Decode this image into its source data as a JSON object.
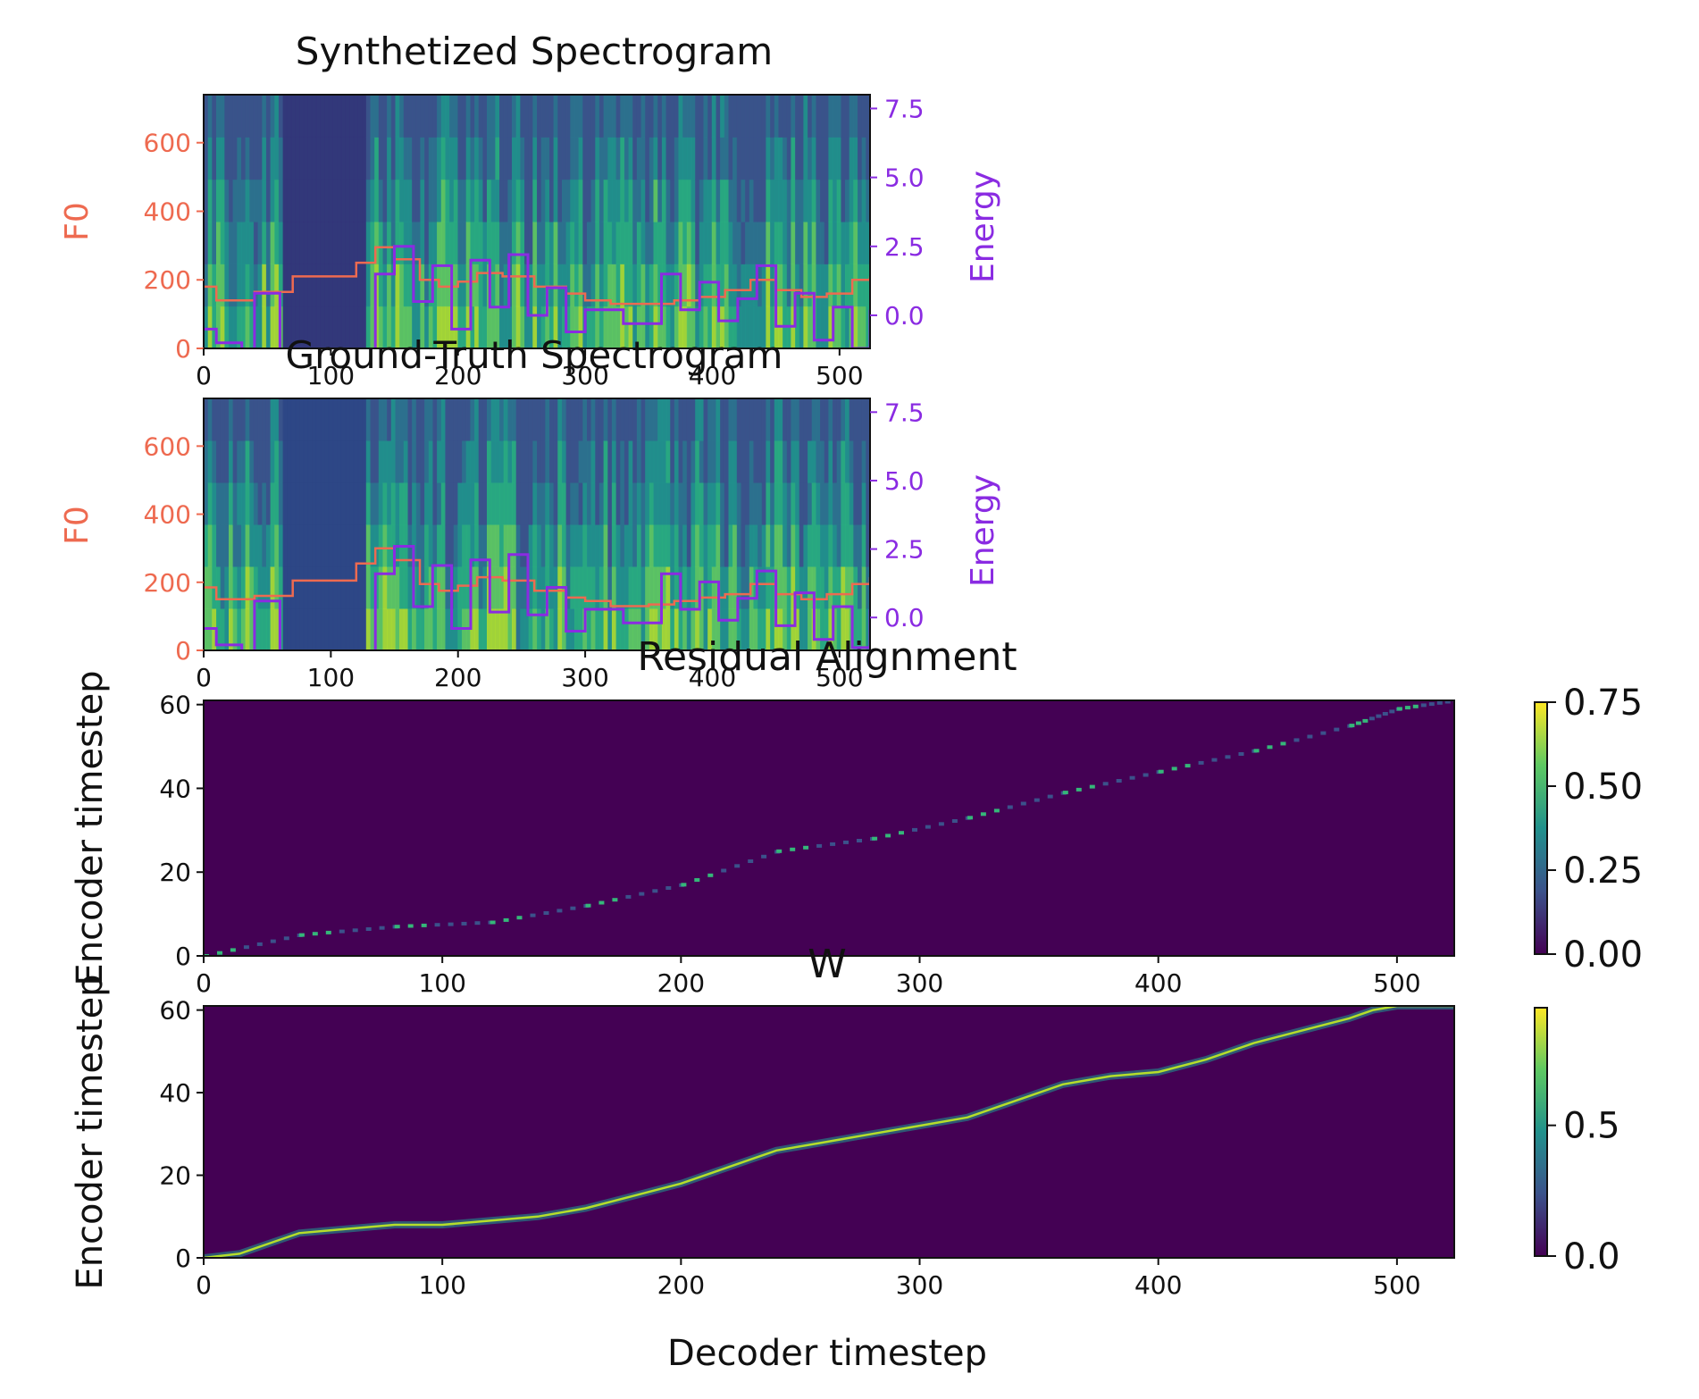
{
  "chart_data": [
    {
      "type": "heatmap",
      "title": "Synthetized Spectrogram",
      "x_range": [
        0,
        524
      ],
      "xticks": [
        "0",
        "100",
        "200",
        "300",
        "400",
        "500"
      ],
      "left_axis": {
        "label": "F0",
        "range": [
          0,
          740
        ],
        "ticks": [
          "0",
          "200",
          "400",
          "600"
        ],
        "color": "#ee6a50"
      },
      "right_axis": {
        "label": "Energy",
        "range": [
          -1.2,
          8.0
        ],
        "ticks": [
          "0.0",
          "2.5",
          "5.0",
          "7.5"
        ],
        "color": "#8a2be2"
      },
      "f0": {
        "x": [
          0,
          10,
          40,
          70,
          120,
          135,
          150,
          170,
          185,
          200,
          215,
          235,
          260,
          285,
          300,
          320,
          350,
          370,
          390,
          410,
          430,
          450,
          470,
          490,
          510,
          524
        ],
        "y": [
          180,
          140,
          165,
          210,
          250,
          295,
          260,
          200,
          180,
          195,
          220,
          210,
          180,
          160,
          140,
          130,
          130,
          140,
          150,
          170,
          200,
          170,
          150,
          160,
          200,
          210
        ]
      },
      "energy": {
        "x": [
          0,
          10,
          30,
          40,
          60,
          120,
          135,
          150,
          165,
          180,
          195,
          210,
          225,
          240,
          255,
          270,
          285,
          300,
          330,
          360,
          375,
          390,
          405,
          420,
          435,
          450,
          465,
          480,
          495,
          510,
          524
        ],
        "y": [
          -0.5,
          -1.0,
          -1.5,
          0.8,
          -1.5,
          -1.5,
          1.5,
          2.5,
          0.5,
          1.8,
          -0.5,
          2.0,
          0.3,
          2.2,
          0.0,
          1.0,
          -0.6,
          0.2,
          -0.3,
          1.5,
          0.2,
          1.2,
          -0.2,
          0.6,
          1.8,
          -0.4,
          0.8,
          -0.9,
          0.3,
          -1.2,
          0.2
        ]
      }
    },
    {
      "type": "heatmap",
      "title": "Ground-Truth Spectrogram",
      "x_range": [
        0,
        524
      ],
      "xticks": [
        "0",
        "100",
        "200",
        "300",
        "400",
        "500"
      ],
      "left_axis": {
        "label": "F0",
        "range": [
          0,
          740
        ],
        "ticks": [
          "0",
          "200",
          "400",
          "600"
        ],
        "color": "#ee6a50"
      },
      "right_axis": {
        "label": "Energy",
        "range": [
          -1.2,
          8.0
        ],
        "ticks": [
          "0.0",
          "2.5",
          "5.0",
          "7.5"
        ],
        "color": "#8a2be2"
      },
      "f0": {
        "x": [
          0,
          10,
          40,
          70,
          120,
          135,
          150,
          170,
          185,
          200,
          215,
          235,
          260,
          285,
          300,
          320,
          350,
          370,
          390,
          410,
          430,
          450,
          470,
          490,
          510,
          524
        ],
        "y": [
          185,
          150,
          160,
          205,
          255,
          300,
          265,
          195,
          175,
          190,
          215,
          205,
          175,
          155,
          145,
          130,
          135,
          145,
          155,
          165,
          195,
          165,
          150,
          165,
          195,
          215
        ]
      },
      "energy": {
        "x": [
          0,
          10,
          30,
          40,
          60,
          120,
          135,
          150,
          165,
          180,
          195,
          210,
          225,
          240,
          255,
          270,
          285,
          300,
          330,
          360,
          375,
          390,
          405,
          420,
          435,
          450,
          465,
          480,
          495,
          510,
          524
        ],
        "y": [
          -0.4,
          -1.0,
          -1.5,
          0.6,
          -1.5,
          -1.5,
          1.6,
          2.6,
          0.4,
          1.9,
          -0.4,
          2.1,
          0.2,
          2.3,
          0.1,
          1.1,
          -0.5,
          0.3,
          -0.2,
          1.6,
          0.3,
          1.3,
          -0.1,
          0.7,
          1.7,
          -0.3,
          0.9,
          -0.8,
          0.4,
          -1.1,
          0.3
        ]
      }
    },
    {
      "type": "heatmap",
      "title": "Residual Alignment",
      "ylabel": "Encoder timestep",
      "x_range": [
        0,
        524
      ],
      "y_range": [
        0,
        61
      ],
      "xticks": [
        "0",
        "100",
        "200",
        "300",
        "400",
        "500"
      ],
      "yticks": [
        "0",
        "20",
        "40",
        "60"
      ],
      "colorbar": {
        "min": 0.0,
        "max": 0.75,
        "ticks": [
          "0.00",
          "0.25",
          "0.50",
          "0.75"
        ]
      },
      "path": {
        "x": [
          0,
          40,
          80,
          120,
          160,
          200,
          240,
          280,
          320,
          360,
          400,
          440,
          480,
          500,
          524
        ],
        "y": [
          0,
          5,
          7,
          8,
          12,
          17,
          25,
          28,
          33,
          39,
          44,
          49,
          55,
          59,
          61
        ]
      }
    },
    {
      "type": "heatmap",
      "title": "W",
      "ylabel": "Encoder timestep",
      "xlabel": "Decoder timestep",
      "x_range": [
        0,
        524
      ],
      "y_range": [
        0,
        61
      ],
      "xticks": [
        "0",
        "100",
        "200",
        "300",
        "400",
        "500"
      ],
      "yticks": [
        "0",
        "20",
        "40",
        "60"
      ],
      "colorbar": {
        "min": 0.0,
        "max": 0.95,
        "ticks": [
          "0.0",
          "0.5"
        ]
      },
      "path": {
        "x": [
          0,
          15,
          30,
          40,
          60,
          80,
          100,
          120,
          140,
          160,
          180,
          200,
          220,
          240,
          260,
          280,
          300,
          320,
          340,
          360,
          380,
          400,
          420,
          440,
          460,
          480,
          490,
          500,
          524
        ],
        "y": [
          0,
          1,
          4,
          6,
          7,
          8,
          8,
          9,
          10,
          12,
          15,
          18,
          22,
          26,
          28,
          30,
          32,
          34,
          38,
          42,
          44,
          45,
          48,
          52,
          55,
          58,
          60,
          61,
          61
        ]
      }
    }
  ]
}
